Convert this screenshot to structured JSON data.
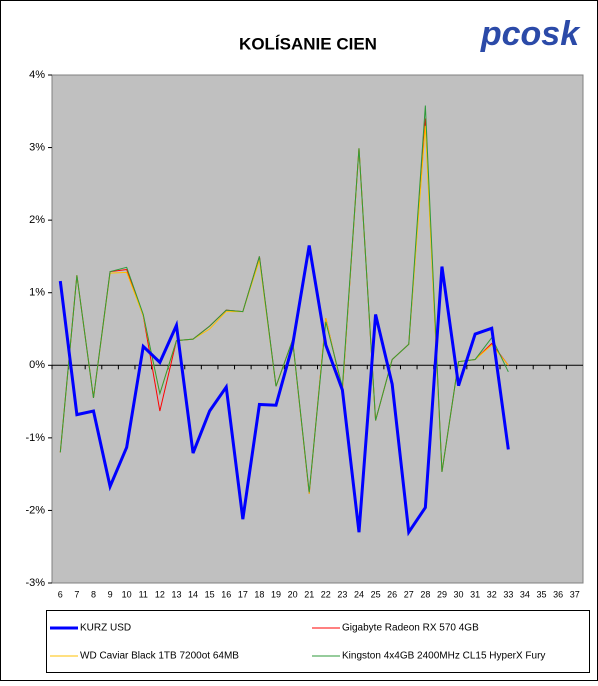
{
  "logo": "pcosk",
  "chart_data": {
    "type": "line",
    "title": "KOLÍSANIE CIEN",
    "categories": [
      "6",
      "7",
      "8",
      "9",
      "10",
      "11",
      "12",
      "13",
      "14",
      "15",
      "16",
      "17",
      "18",
      "19",
      "20",
      "21",
      "22",
      "23",
      "24",
      "25",
      "26",
      "27",
      "28",
      "29",
      "30",
      "31",
      "32",
      "33",
      "34",
      "35",
      "36",
      "37"
    ],
    "ylim": [
      -3,
      4
    ],
    "yticks": [
      {
        "value": -3,
        "label": "-3%"
      },
      {
        "value": -2,
        "label": "-2%"
      },
      {
        "value": -1,
        "label": "-1%"
      },
      {
        "value": 0,
        "label": "0%"
      },
      {
        "value": 1,
        "label": "1%"
      },
      {
        "value": 2,
        "label": "2%"
      },
      {
        "value": 3,
        "label": "3%"
      },
      {
        "value": 4,
        "label": "4%"
      }
    ],
    "grid": false,
    "legend": "bottom",
    "series": [
      {
        "name": "KURZ USD",
        "color": "#0000ff",
        "values": [
          1.16,
          -0.68,
          -0.63,
          -1.67,
          -1.13,
          0.26,
          0.04,
          0.55,
          -1.21,
          -0.63,
          -0.3,
          -2.12,
          -0.54,
          -0.55,
          0.28,
          1.65,
          0.28,
          -0.34,
          -2.3,
          0.7,
          -0.26,
          -2.3,
          -1.96,
          1.36,
          -0.28,
          0.43,
          0.51,
          -1.16,
          null,
          null,
          null,
          null
        ]
      },
      {
        "name": "Gigabyte Radeon RX 570 4GB",
        "color": "#ff0000",
        "values": [
          -1.2,
          1.24,
          -0.45,
          1.29,
          1.32,
          0.68,
          -0.63,
          0.34,
          0.36,
          0.54,
          0.76,
          0.74,
          1.5,
          -0.29,
          0.35,
          -1.77,
          0.65,
          -0.35,
          2.99,
          -0.76,
          0.08,
          0.29,
          3.4,
          -1.47,
          0.05,
          0.08,
          0.3,
          0,
          null,
          null,
          null,
          null
        ]
      },
      {
        "name": "WD Caviar Black 1TB 7200ot 64MB",
        "color": "#ffc000",
        "values": [
          -1.2,
          1.24,
          -0.45,
          1.27,
          1.28,
          0.68,
          -0.39,
          0.34,
          0.36,
          0.5,
          0.74,
          0.74,
          1.45,
          -0.29,
          0.35,
          -1.77,
          0.65,
          -0.35,
          2.99,
          -0.76,
          0.08,
          0.29,
          3.3,
          -1.47,
          0.05,
          0.08,
          0.28,
          0,
          null,
          null,
          null,
          null
        ]
      },
      {
        "name": "Kingston 4x4GB 2400MHz CL15 HyperX Fury",
        "color": "#2e9a3a",
        "values": [
          -1.2,
          1.24,
          -0.45,
          1.29,
          1.35,
          0.7,
          -0.39,
          0.34,
          0.36,
          0.54,
          0.76,
          0.74,
          1.5,
          -0.29,
          0.35,
          -1.75,
          0.6,
          -0.3,
          2.99,
          -0.76,
          0.08,
          0.29,
          3.58,
          -1.47,
          0.05,
          0.08,
          0.38,
          -0.09,
          null,
          null,
          null,
          null
        ]
      }
    ]
  }
}
